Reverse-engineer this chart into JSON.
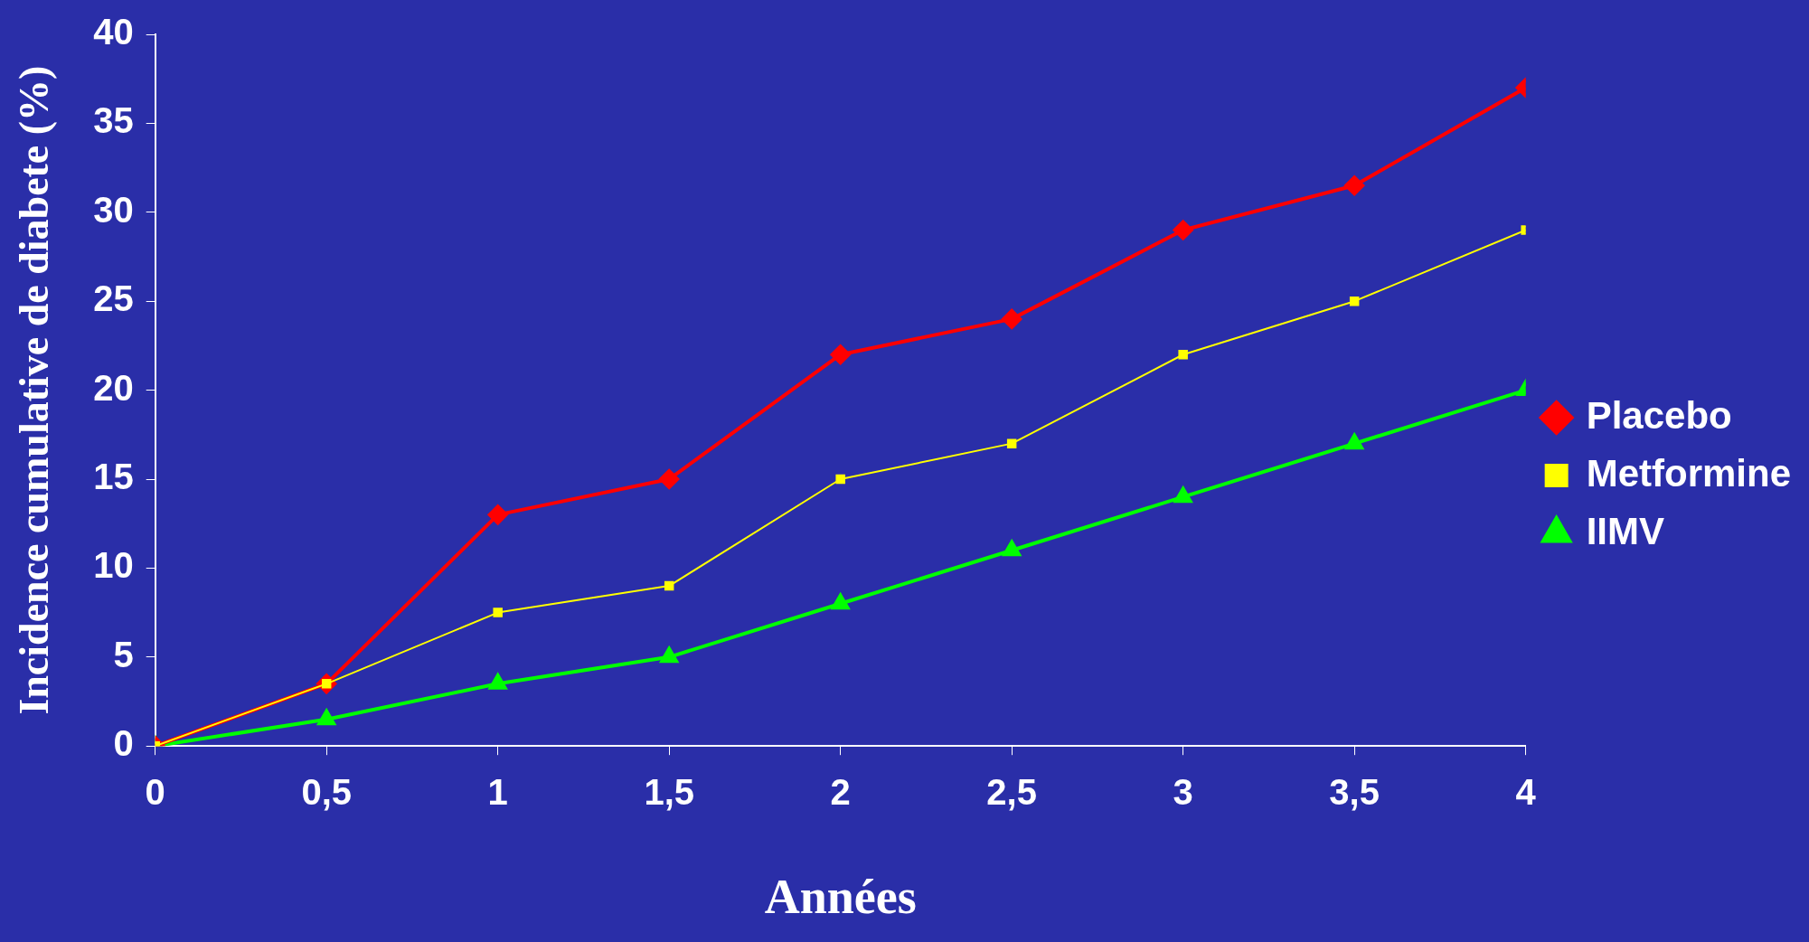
{
  "chart_data": {
    "type": "line",
    "xlabel": "Années",
    "ylabel": "Incidence cumulative de diabete (%)",
    "x": [
      0,
      0.5,
      1,
      1.5,
      2,
      2.5,
      3,
      3.5,
      4
    ],
    "series": [
      {
        "name": "Placebo",
        "color": "#ff0000",
        "marker": "diamond",
        "values": [
          0,
          3.5,
          13,
          15,
          22,
          24,
          29,
          31.5,
          37
        ]
      },
      {
        "name": "Metformine",
        "color": "#ffff00",
        "marker": "square",
        "values": [
          0,
          3.5,
          7.5,
          9,
          15,
          17,
          22,
          25,
          29
        ]
      },
      {
        "name": "IIMV",
        "color": "#00ff00",
        "marker": "triangle",
        "values": [
          0,
          1.5,
          3.5,
          5,
          8,
          11,
          14,
          17,
          20
        ]
      }
    ],
    "xlim": [
      0,
      4
    ],
    "xticks": [
      0,
      {
        "value": 0.5,
        "label": "0,5"
      },
      1,
      {
        "value": 1.5,
        "label": "1,5"
      },
      2,
      {
        "value": 2.5,
        "label": "2,5"
      },
      3,
      {
        "value": 3.5,
        "label": "3,5"
      },
      4
    ],
    "ylim": [
      0,
      40
    ],
    "yticks": [
      0,
      5,
      10,
      15,
      20,
      25,
      30,
      35,
      40
    ],
    "grid": false,
    "legend": "right",
    "line_style": "solid"
  }
}
